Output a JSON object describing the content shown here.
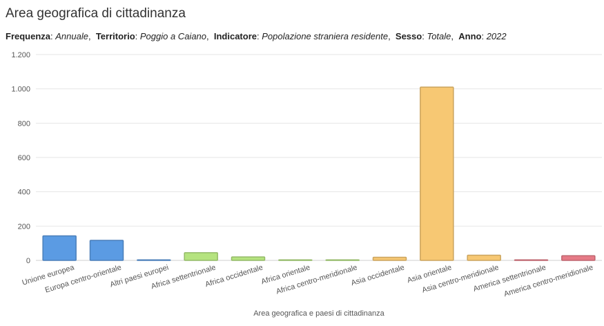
{
  "header": {
    "title": "Area geografica di cittadinanza",
    "filters": [
      {
        "key": "Frequenza",
        "value": "Annuale"
      },
      {
        "key": "Territorio",
        "value": "Poggio a Caiano"
      },
      {
        "key": "Indicatore",
        "value": "Popolazione straniera residente"
      },
      {
        "key": "Sesso",
        "value": "Totale"
      },
      {
        "key": "Anno",
        "value": "2022"
      }
    ]
  },
  "chart_data": {
    "type": "bar",
    "title": "Area geografica di cittadinanza",
    "xlabel": "Area geografica e paesi di cittadinanza",
    "ylabel": "",
    "ylim": [
      0,
      1200
    ],
    "yticks": [
      0,
      200,
      400,
      600,
      800,
      1000,
      1200
    ],
    "ytick_labels": [
      "0",
      "200",
      "400",
      "600",
      "800",
      "1.000",
      "1.200"
    ],
    "grid": true,
    "categories": [
      "Unione europea",
      "Europa centro-orientale",
      "Altri paesi europei",
      "Africa settentrionale",
      "Africa occidentale",
      "Africa orientale",
      "Africa centro-meridionale",
      "Asia occidentale",
      "Asia orientale",
      "Asia centro-meridionale",
      "America settentrionale",
      "America centro-meridionale"
    ],
    "values": [
      143,
      117,
      1,
      45,
      20,
      0,
      2,
      18,
      1010,
      30,
      1,
      27
    ],
    "colors": {
      "europa": "#5b9be3",
      "africa": "#b5e37f",
      "asia": "#f7c873",
      "america": "#e67a86"
    },
    "bar_colors": [
      "europa",
      "europa",
      "europa",
      "africa",
      "africa",
      "africa",
      "africa",
      "asia",
      "asia",
      "asia",
      "america",
      "america"
    ]
  }
}
